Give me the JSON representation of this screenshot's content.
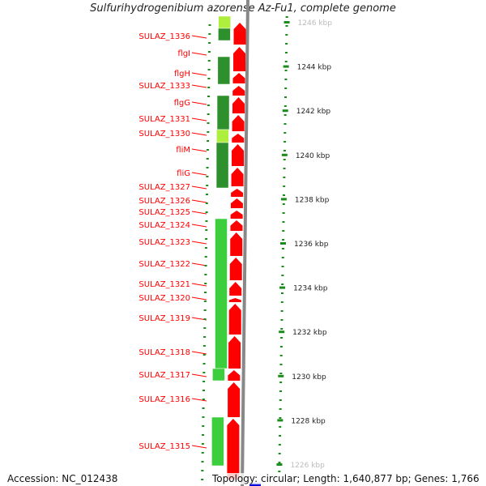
{
  "title": "Sulfurihydrogenibium azorense Az-Fu1, complete genome",
  "accession": "Accession: NC_012438",
  "topology": "Topology: circular; Length: 1,640,877 bp; Genes: 1,766",
  "genes": [
    {
      "name": "SULAZ_1336"
    },
    {
      "name": "flgI"
    },
    {
      "name": "flgH"
    },
    {
      "name": "SULAZ_1333"
    },
    {
      "name": "flgG"
    },
    {
      "name": "SULAZ_1331"
    },
    {
      "name": "SULAZ_1330"
    },
    {
      "name": "fliM"
    },
    {
      "name": "fliG"
    },
    {
      "name": "SULAZ_1327"
    },
    {
      "name": "SULAZ_1326"
    },
    {
      "name": "SULAZ_1325"
    },
    {
      "name": "SULAZ_1324"
    },
    {
      "name": "SULAZ_1323"
    },
    {
      "name": "SULAZ_1322"
    },
    {
      "name": "SULAZ_1321"
    },
    {
      "name": "SULAZ_1320"
    },
    {
      "name": "SULAZ_1319"
    },
    {
      "name": "SULAZ_1318"
    },
    {
      "name": "SULAZ_1317"
    },
    {
      "name": "SULAZ_1316"
    },
    {
      "name": "SULAZ_1315"
    }
  ],
  "ruler": [
    "1246 kbp",
    "1244 kbp",
    "1242 kbp",
    "1240 kbp",
    "1238 kbp",
    "1236 kbp",
    "1234 kbp",
    "1232 kbp",
    "1230 kbp",
    "1228 kbp",
    "1226 kbp"
  ],
  "colors": {
    "gene_label": "#ff0000",
    "gene_arrow": "#ff0000",
    "green_dark": "#228b22",
    "green_light": "#33cc33",
    "ruler": "#1a8c1a"
  }
}
